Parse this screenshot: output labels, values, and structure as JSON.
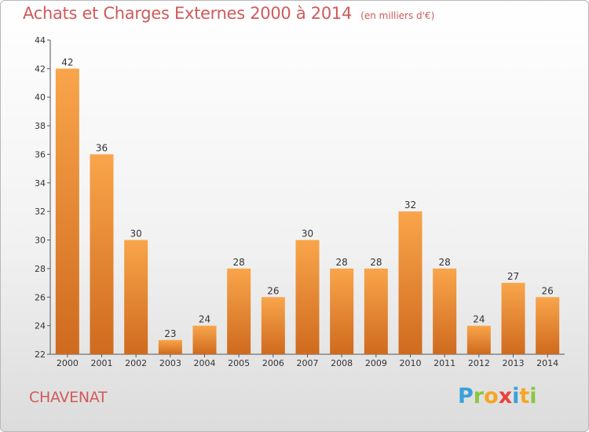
{
  "header": {
    "title": "Achats et Charges Externes 2000 à 2014",
    "subtitle": "(en milliers d'€)"
  },
  "footer": {
    "commune": "CHAVENAT",
    "logo": {
      "letters": [
        "P",
        "r",
        "o",
        "x",
        "i",
        "t",
        "i"
      ],
      "colors": [
        "#3aa0d8",
        "#8cc63f",
        "#f5a623",
        "#e8413c",
        "#3aa0d8",
        "#f5a623",
        "#8cc63f"
      ]
    }
  },
  "chart_data": {
    "type": "bar",
    "categories": [
      "2000",
      "2001",
      "2002",
      "2003",
      "2004",
      "2005",
      "2006",
      "2007",
      "2008",
      "2009",
      "2010",
      "2011",
      "2012",
      "2013",
      "2014"
    ],
    "values": [
      42,
      36,
      30,
      23,
      24,
      28,
      26,
      30,
      28,
      28,
      32,
      28,
      24,
      27,
      26
    ],
    "ylim": [
      22,
      44
    ],
    "yticks": [
      22,
      24,
      26,
      28,
      30,
      32,
      34,
      36,
      38,
      40,
      42,
      44
    ],
    "grid": false,
    "colors": {
      "bar_top": "#f9a54b",
      "bar_bottom": "#cf6a1e",
      "text": "#333333"
    }
  }
}
